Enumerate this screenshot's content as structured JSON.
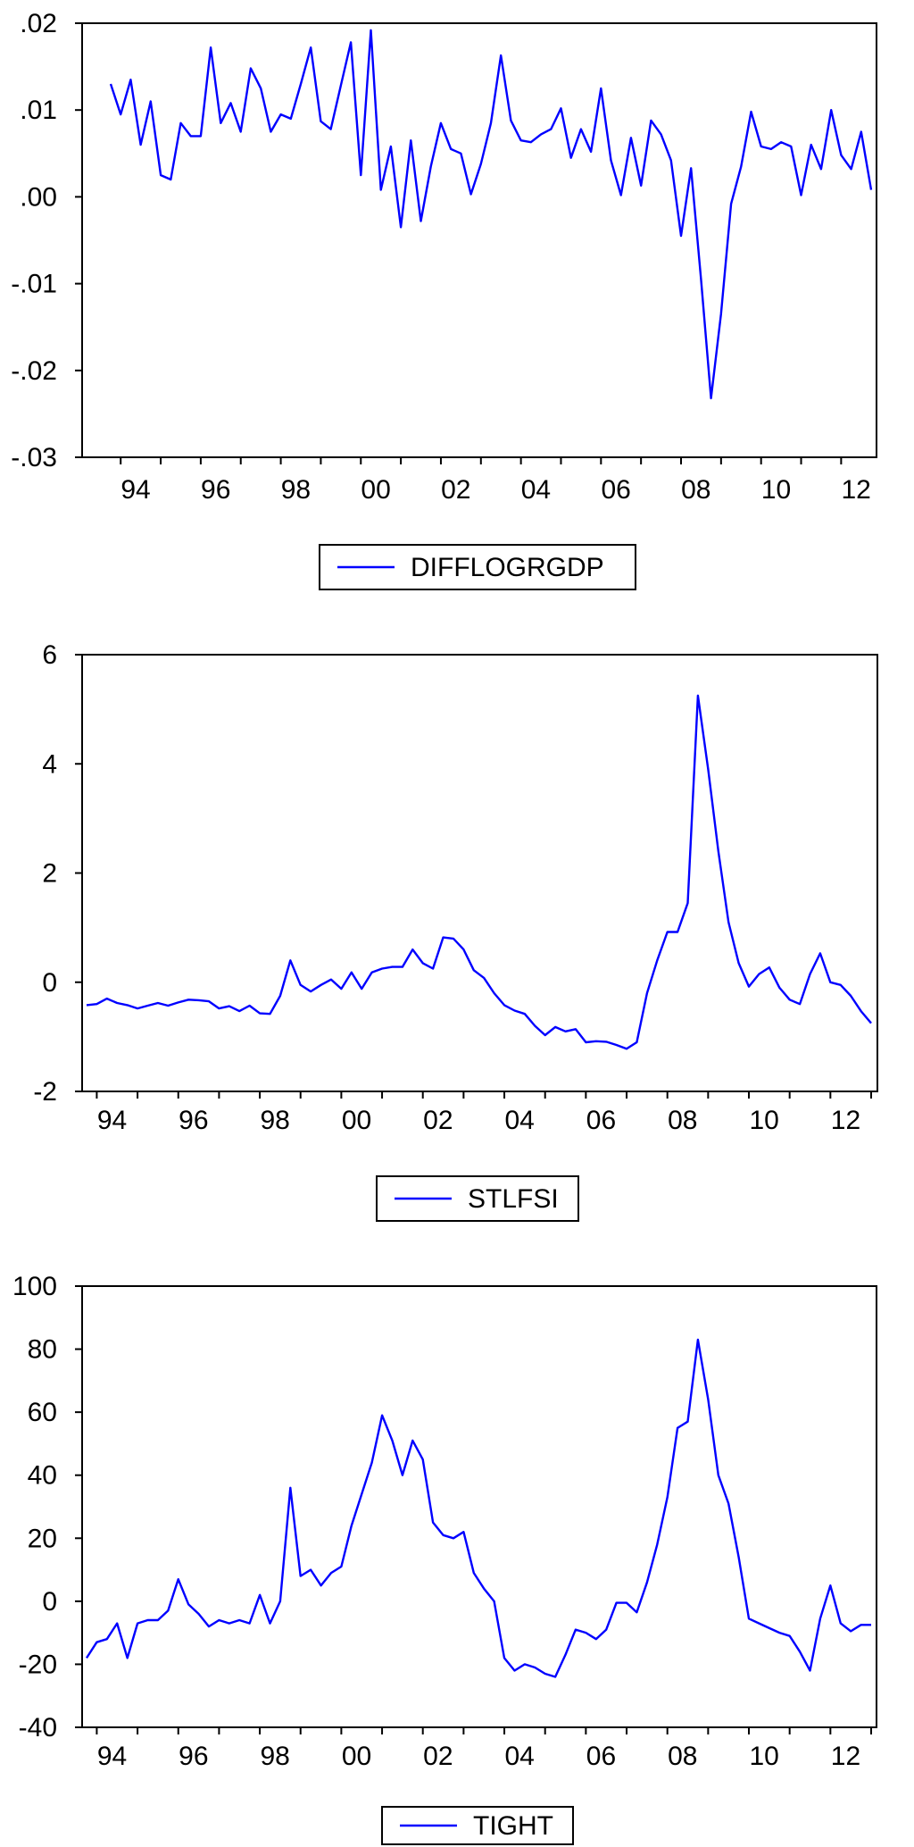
{
  "chart_data": [
    {
      "type": "line",
      "title": "",
      "xlabel": "",
      "ylabel": "",
      "x_tick_labels": [
        "94",
        "96",
        "98",
        "00",
        "02",
        "04",
        "06",
        "08",
        "10",
        "12"
      ],
      "y_tick_labels": [
        ".02",
        ".01",
        ".00",
        "-.01",
        "-.02",
        "-.03"
      ],
      "ylim": [
        -0.03,
        0.02
      ],
      "grid": false,
      "legend_position": "bottom-center",
      "series": [
        {
          "name": "DIFFLOGRGDP",
          "color": "#0000ff",
          "x_start": "1993Q4",
          "frequency": "quarterly",
          "values": [
            0.013,
            0.0095,
            0.0135,
            0.006,
            0.011,
            0.0025,
            0.002,
            0.0085,
            0.007,
            0.007,
            0.0172,
            0.0085,
            0.0108,
            0.0075,
            0.0148,
            0.0125,
            0.0075,
            0.0095,
            0.009,
            0.013,
            0.0172,
            0.0087,
            0.0078,
            0.0128,
            0.0178,
            0.0025,
            0.0192,
            0.0008,
            0.0058,
            -0.0035,
            0.0065,
            -0.0028,
            0.0035,
            0.0085,
            0.0055,
            0.005,
            0.0003,
            0.0038,
            0.0085,
            0.0163,
            0.0088,
            0.0065,
            0.0063,
            0.0072,
            0.0078,
            0.0102,
            0.0045,
            0.0078,
            0.0052,
            0.0125,
            0.0042,
            0.0002,
            0.0068,
            0.0013,
            0.0088,
            0.0072,
            0.0042,
            -0.0045,
            0.0033,
            -0.0095,
            -0.0232,
            -0.0135,
            -0.0008,
            0.0035,
            0.0098,
            0.0058,
            0.0055,
            0.0063,
            0.0058,
            0.0002,
            0.006,
            0.0032,
            0.01,
            0.0048,
            0.0032,
            0.0075,
            0.0008
          ]
        }
      ]
    },
    {
      "type": "line",
      "title": "",
      "xlabel": "",
      "ylabel": "",
      "x_tick_labels": [
        "94",
        "96",
        "98",
        "00",
        "02",
        "04",
        "06",
        "08",
        "10",
        "12"
      ],
      "y_tick_labels": [
        "6",
        "4",
        "2",
        "0",
        "-2"
      ],
      "ylim": [
        -2,
        6
      ],
      "grid": false,
      "legend_position": "bottom-center",
      "series": [
        {
          "name": "STLFSI",
          "color": "#0000ff",
          "x_start": "1993Q4",
          "frequency": "quarterly",
          "values": [
            -0.42,
            -0.4,
            -0.3,
            -0.38,
            -0.42,
            -0.48,
            -0.43,
            -0.38,
            -0.43,
            -0.37,
            -0.32,
            -0.33,
            -0.35,
            -0.48,
            -0.44,
            -0.53,
            -0.43,
            -0.57,
            -0.58,
            -0.25,
            0.4,
            -0.05,
            -0.17,
            -0.05,
            0.05,
            -0.12,
            0.18,
            -0.12,
            0.18,
            0.25,
            0.28,
            0.28,
            0.6,
            0.35,
            0.25,
            0.82,
            0.8,
            0.6,
            0.22,
            0.08,
            -0.2,
            -0.42,
            -0.52,
            -0.58,
            -0.8,
            -0.97,
            -0.82,
            -0.9,
            -0.86,
            -1.1,
            -1.08,
            -1.09,
            -1.15,
            -1.22,
            -1.1,
            -0.2,
            0.4,
            0.92,
            0.92,
            1.45,
            5.25,
            3.9,
            2.4,
            1.1,
            0.35,
            -0.08,
            0.15,
            0.27,
            -0.1,
            -0.32,
            -0.4,
            0.15,
            0.53,
            0.0,
            -0.05,
            -0.25,
            -0.53,
            -0.75
          ]
        }
      ]
    },
    {
      "type": "line",
      "title": "",
      "xlabel": "",
      "ylabel": "",
      "x_tick_labels": [
        "94",
        "96",
        "98",
        "00",
        "02",
        "04",
        "06",
        "08",
        "10",
        "12"
      ],
      "y_tick_labels": [
        "100",
        "80",
        "60",
        "40",
        "20",
        "0",
        "-20",
        "-40"
      ],
      "ylim": [
        -40,
        100
      ],
      "grid": false,
      "legend_position": "bottom-center",
      "series": [
        {
          "name": "TIGHT",
          "color": "#0000ff",
          "x_start": "1993Q4",
          "frequency": "quarterly",
          "values": [
            -18,
            -13,
            -12,
            -7,
            -18,
            -7,
            -6,
            -6,
            -3,
            7,
            -1,
            -4,
            -8,
            -6,
            -7,
            -6,
            -7,
            2,
            -7,
            0,
            36,
            8,
            10,
            5,
            9,
            11,
            24,
            34,
            44,
            59,
            51,
            40,
            51,
            45,
            25,
            21,
            20,
            22,
            9,
            4,
            0,
            -18,
            -22,
            -20,
            -21,
            -23,
            -24,
            -17,
            -9,
            -10,
            -12,
            -9,
            -0.5,
            -0.5,
            -3.5,
            6,
            18,
            33,
            55,
            57,
            83,
            64,
            40,
            31,
            14,
            -5.5,
            -7,
            -8.5,
            -10,
            -11,
            -16,
            -22,
            -5.5,
            5,
            -7,
            -9.5,
            -7.5,
            -7.5
          ]
        }
      ]
    }
  ]
}
